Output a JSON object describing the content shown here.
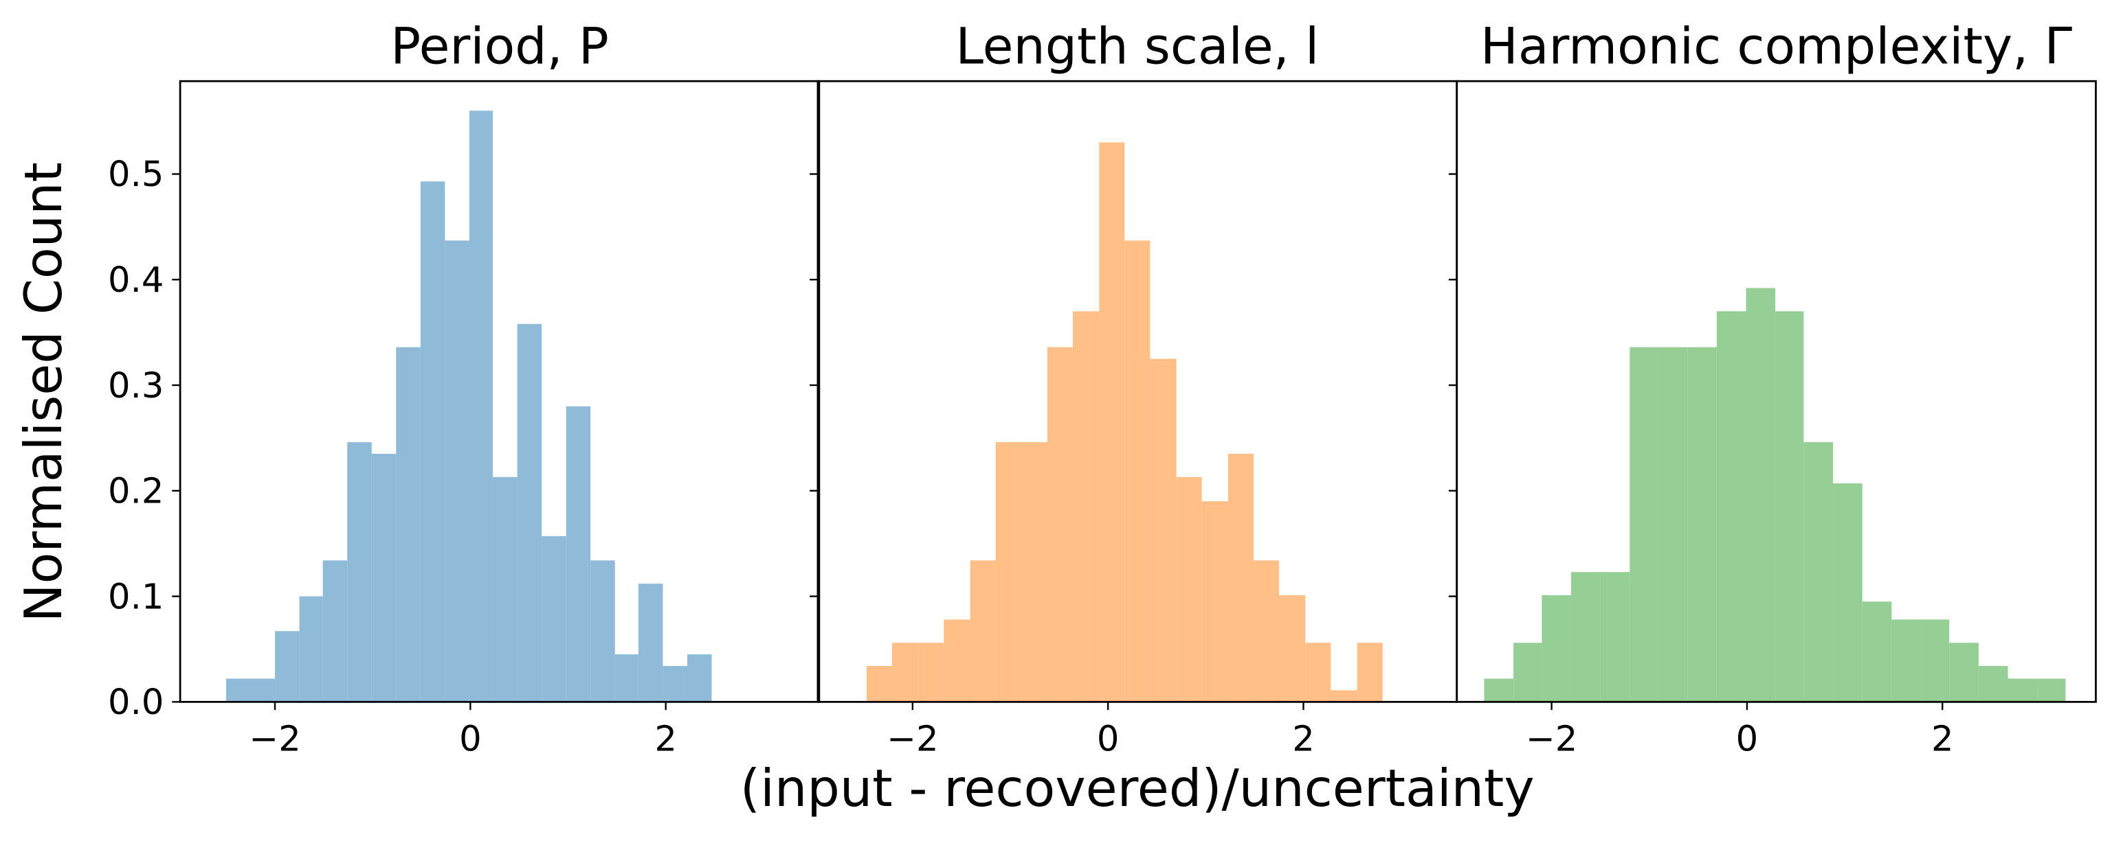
{
  "figure": {
    "xlabel": "(input - recovered)/uncertainty",
    "ylabel": "Normalised Count"
  },
  "chart_data": [
    {
      "type": "histogram",
      "title": "Period, P",
      "color": "#8fbbd9",
      "bins": [
        -2.5,
        -2.25,
        -2.0,
        -1.75,
        -1.51,
        -1.26,
        -1.01,
        -0.76,
        -0.51,
        -0.26,
        -0.01,
        0.23,
        0.48,
        0.73,
        0.98,
        1.23,
        1.48,
        1.72,
        1.97,
        2.22,
        2.47
      ],
      "values": [
        0.022,
        0.022,
        0.067,
        0.1,
        0.134,
        0.246,
        0.235,
        0.336,
        0.493,
        0.437,
        0.56,
        0.213,
        0.358,
        0.157,
        0.28,
        0.134,
        0.045,
        0.112,
        0.034,
        0.045
      ],
      "xlim": [
        -2.97,
        3.57
      ],
      "ylim": [
        0,
        0.588
      ],
      "xticks": [
        {
          "value": -2,
          "label": "−2"
        },
        0,
        2
      ],
      "yticks": [
        {
          "value": 0,
          "label": "0.0"
        },
        0.1,
        0.2,
        0.3,
        0.4,
        0.5
      ]
    },
    {
      "type": "histogram",
      "title": "Length scale, l",
      "color": "#ffbf86",
      "bins": [
        -2.47,
        -2.21,
        -1.94,
        -1.68,
        -1.41,
        -1.15,
        -0.89,
        -0.62,
        -0.36,
        -0.09,
        0.17,
        0.43,
        0.7,
        0.96,
        1.23,
        1.49,
        1.75,
        2.02,
        2.28,
        2.55,
        2.81
      ],
      "values": [
        0.034,
        0.056,
        0.056,
        0.078,
        0.134,
        0.246,
        0.246,
        0.336,
        0.37,
        0.53,
        0.437,
        0.325,
        0.213,
        0.19,
        0.235,
        0.134,
        0.101,
        0.056,
        0.011,
        0.056
      ],
      "xlim": [
        -2.97,
        3.57
      ],
      "ylim": [
        0,
        0.588
      ],
      "xticks": [
        {
          "value": -2,
          "label": "−2"
        },
        0,
        2
      ],
      "yticks": [
        0,
        0.1,
        0.2,
        0.3,
        0.4,
        0.5
      ]
    },
    {
      "type": "histogram",
      "title": "Harmonic complexity, Γ",
      "color": "#95cf95",
      "bins": [
        -2.69,
        -2.39,
        -2.1,
        -1.8,
        -1.5,
        -1.2,
        -0.9,
        -0.61,
        -0.31,
        -0.01,
        0.29,
        0.58,
        0.88,
        1.18,
        1.48,
        1.78,
        2.07,
        2.37,
        2.67,
        2.97,
        3.26
      ],
      "values": [
        0.022,
        0.056,
        0.101,
        0.123,
        0.123,
        0.336,
        0.336,
        0.336,
        0.37,
        0.392,
        0.37,
        0.246,
        0.207,
        0.095,
        0.078,
        0.078,
        0.056,
        0.034,
        0.022,
        0.022
      ],
      "xlim": [
        -2.97,
        3.57
      ],
      "ylim": [
        0,
        0.588
      ],
      "xticks": [
        {
          "value": -2,
          "label": "−2"
        },
        0,
        2
      ],
      "yticks": [
        0,
        0.1,
        0.2,
        0.3,
        0.4,
        0.5
      ]
    }
  ]
}
